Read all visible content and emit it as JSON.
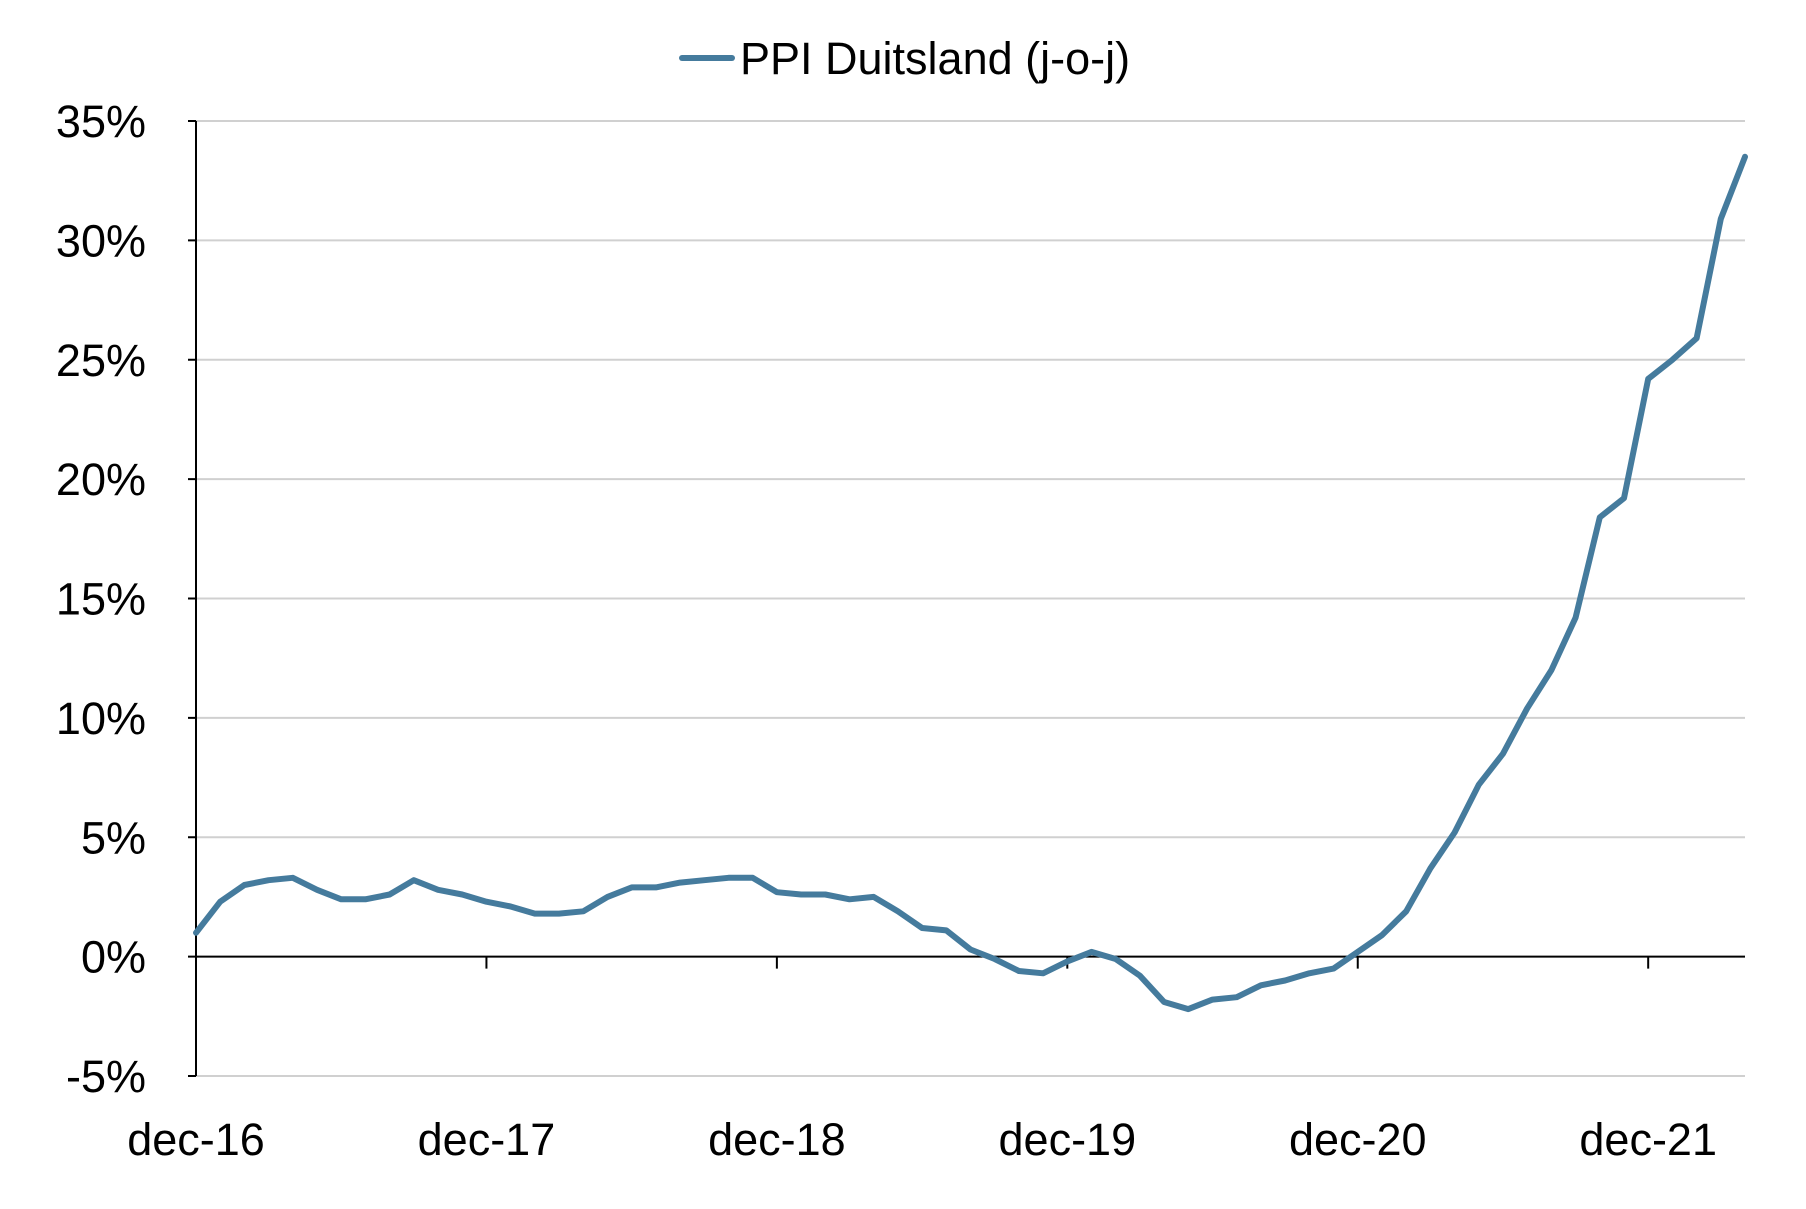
{
  "chart_data": {
    "type": "line",
    "legend": {
      "position": "top-center"
    },
    "grid": {
      "horizontal": true,
      "vertical": false
    },
    "ylim": [
      -5,
      35
    ],
    "y_ticks": [
      35,
      30,
      25,
      20,
      15,
      10,
      5,
      0,
      -5
    ],
    "y_tick_labels": [
      "35%",
      "30%",
      "25%",
      "20%",
      "15%",
      "10%",
      "5%",
      "0%",
      "-5%"
    ],
    "x_range": [
      "2016-12",
      "2022-04"
    ],
    "x_ticks": [
      "2016-12",
      "2017-12",
      "2018-12",
      "2019-12",
      "2020-12",
      "2021-12"
    ],
    "x_tick_labels": [
      "dec-16",
      "dec-17",
      "dec-18",
      "dec-19",
      "dec-20",
      "dec-21"
    ],
    "colors": {
      "series": "#457b9d",
      "grid": "#d0d0d0",
      "axis": "#000000"
    },
    "series": [
      {
        "name": "PPI Duitsland (j-o-j)",
        "x": [
          "2016-12",
          "2017-01",
          "2017-02",
          "2017-03",
          "2017-04",
          "2017-05",
          "2017-06",
          "2017-07",
          "2017-08",
          "2017-09",
          "2017-10",
          "2017-11",
          "2017-12",
          "2018-01",
          "2018-02",
          "2018-03",
          "2018-04",
          "2018-05",
          "2018-06",
          "2018-07",
          "2018-08",
          "2018-09",
          "2018-10",
          "2018-11",
          "2018-12",
          "2019-01",
          "2019-02",
          "2019-03",
          "2019-04",
          "2019-05",
          "2019-06",
          "2019-07",
          "2019-08",
          "2019-09",
          "2019-10",
          "2019-11",
          "2019-12",
          "2020-01",
          "2020-02",
          "2020-03",
          "2020-04",
          "2020-05",
          "2020-06",
          "2020-07",
          "2020-08",
          "2020-09",
          "2020-10",
          "2020-11",
          "2020-12",
          "2021-01",
          "2021-02",
          "2021-03",
          "2021-04",
          "2021-05",
          "2021-06",
          "2021-07",
          "2021-08",
          "2021-09",
          "2021-10",
          "2021-11",
          "2021-12",
          "2022-01",
          "2022-02",
          "2022-03",
          "2022-04"
        ],
        "values": [
          1.0,
          2.3,
          3.0,
          3.2,
          3.3,
          2.8,
          2.4,
          2.4,
          2.6,
          3.2,
          2.8,
          2.6,
          2.3,
          2.1,
          1.8,
          1.8,
          1.9,
          2.5,
          2.9,
          2.9,
          3.1,
          3.2,
          3.3,
          3.3,
          2.7,
          2.6,
          2.6,
          2.4,
          2.5,
          1.9,
          1.2,
          1.1,
          0.3,
          -0.1,
          -0.6,
          -0.7,
          -0.2,
          0.2,
          -0.1,
          -0.8,
          -1.9,
          -2.2,
          -1.8,
          -1.7,
          -1.2,
          -1.0,
          -0.7,
          -0.5,
          0.2,
          0.9,
          1.9,
          3.7,
          5.2,
          7.2,
          8.5,
          10.4,
          12.0,
          14.2,
          18.4,
          19.2,
          24.2,
          25.0,
          25.9,
          30.9,
          33.5
        ]
      }
    ]
  }
}
